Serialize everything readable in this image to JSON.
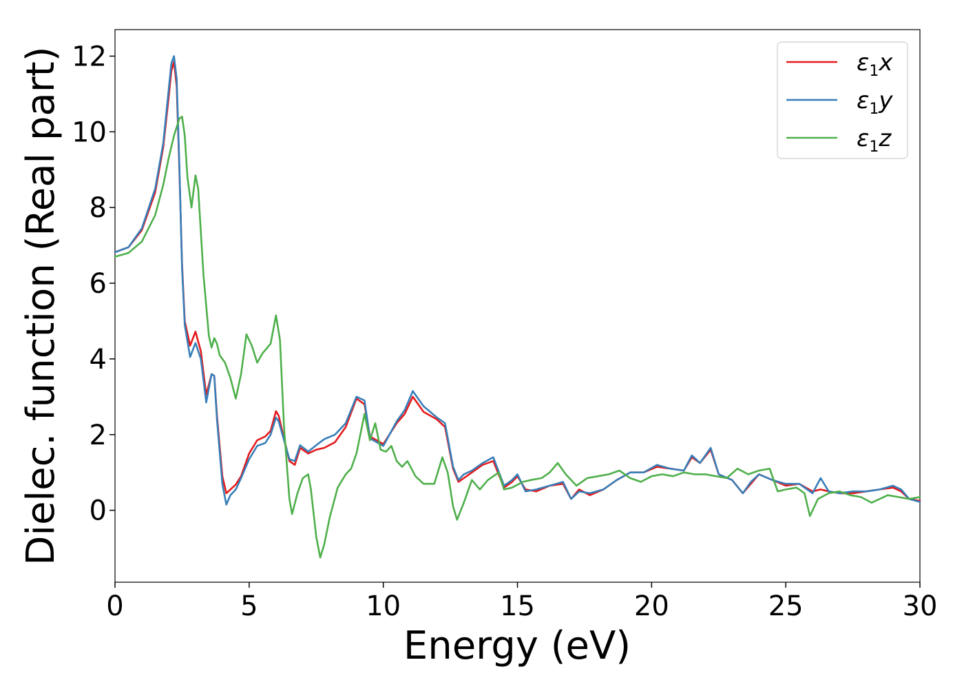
{
  "chart_data": {
    "type": "line",
    "xlabel": "Energy (eV)",
    "ylabel": "Dielec. function (Real part)",
    "xlim": [
      0,
      30
    ],
    "ylim": [
      -1.9,
      12.7
    ],
    "xticks": [
      0,
      5,
      10,
      15,
      20,
      25,
      30
    ],
    "yticks": [
      0,
      2,
      4,
      6,
      8,
      10,
      12
    ],
    "legend_position": "top-right",
    "grid": false,
    "series": [
      {
        "name": "ε1x",
        "legend_base": "ε",
        "legend_sub": "1",
        "legend_var": "x",
        "color": "#e41a1c",
        "points": [
          [
            0,
            6.82
          ],
          [
            0.5,
            6.95
          ],
          [
            1.0,
            7.4
          ],
          [
            1.5,
            8.4
          ],
          [
            1.8,
            9.6
          ],
          [
            2.0,
            10.9
          ],
          [
            2.1,
            11.6
          ],
          [
            2.2,
            11.85
          ],
          [
            2.3,
            11.2
          ],
          [
            2.4,
            9.0
          ],
          [
            2.5,
            6.5
          ],
          [
            2.6,
            5.0
          ],
          [
            2.8,
            4.35
          ],
          [
            3.0,
            4.72
          ],
          [
            3.2,
            4.2
          ],
          [
            3.4,
            3.05
          ],
          [
            3.6,
            3.6
          ],
          [
            3.7,
            3.55
          ],
          [
            3.8,
            2.5
          ],
          [
            4.0,
            0.9
          ],
          [
            4.15,
            0.45
          ],
          [
            4.3,
            0.55
          ],
          [
            4.5,
            0.68
          ],
          [
            4.7,
            0.9
          ],
          [
            5.0,
            1.5
          ],
          [
            5.3,
            1.85
          ],
          [
            5.6,
            1.95
          ],
          [
            5.8,
            2.1
          ],
          [
            6.0,
            2.62
          ],
          [
            6.1,
            2.5
          ],
          [
            6.3,
            1.9
          ],
          [
            6.5,
            1.3
          ],
          [
            6.7,
            1.2
          ],
          [
            6.9,
            1.65
          ],
          [
            7.2,
            1.5
          ],
          [
            7.5,
            1.6
          ],
          [
            7.8,
            1.65
          ],
          [
            8.2,
            1.8
          ],
          [
            8.6,
            2.2
          ],
          [
            9.0,
            2.95
          ],
          [
            9.3,
            2.8
          ],
          [
            9.5,
            1.95
          ],
          [
            10.0,
            1.75
          ],
          [
            10.5,
            2.3
          ],
          [
            10.8,
            2.55
          ],
          [
            11.1,
            3.0
          ],
          [
            11.5,
            2.6
          ],
          [
            12.0,
            2.4
          ],
          [
            12.3,
            2.2
          ],
          [
            12.6,
            1.1
          ],
          [
            12.8,
            0.75
          ],
          [
            13.0,
            0.85
          ],
          [
            13.3,
            1.0
          ],
          [
            13.7,
            1.2
          ],
          [
            14.1,
            1.3
          ],
          [
            14.5,
            0.6
          ],
          [
            14.8,
            0.75
          ],
          [
            15.0,
            0.9
          ],
          [
            15.3,
            0.55
          ],
          [
            15.7,
            0.5
          ],
          [
            16.2,
            0.65
          ],
          [
            16.7,
            0.7
          ],
          [
            17.0,
            0.3
          ],
          [
            17.3,
            0.55
          ],
          [
            17.7,
            0.4
          ],
          [
            18.2,
            0.55
          ],
          [
            18.7,
            0.8
          ],
          [
            19.2,
            1.0
          ],
          [
            19.7,
            1.0
          ],
          [
            20.2,
            1.15
          ],
          [
            20.7,
            1.1
          ],
          [
            21.2,
            1.05
          ],
          [
            21.5,
            1.4
          ],
          [
            21.8,
            1.25
          ],
          [
            22.2,
            1.6
          ],
          [
            22.5,
            0.95
          ],
          [
            23.0,
            0.8
          ],
          [
            23.4,
            0.45
          ],
          [
            23.7,
            0.7
          ],
          [
            24.0,
            0.95
          ],
          [
            24.5,
            0.8
          ],
          [
            25.0,
            0.65
          ],
          [
            25.5,
            0.7
          ],
          [
            26.0,
            0.5
          ],
          [
            26.3,
            0.55
          ],
          [
            26.6,
            0.5
          ],
          [
            27.0,
            0.45
          ],
          [
            27.5,
            0.45
          ],
          [
            28.0,
            0.5
          ],
          [
            28.5,
            0.55
          ],
          [
            29.0,
            0.6
          ],
          [
            29.3,
            0.5
          ],
          [
            29.6,
            0.3
          ],
          [
            30.0,
            0.25
          ]
        ]
      },
      {
        "name": "ε1y",
        "legend_base": "ε",
        "legend_sub": "1",
        "legend_var": "y",
        "color": "#377eb8",
        "points": [
          [
            0,
            6.82
          ],
          [
            0.5,
            6.95
          ],
          [
            1.0,
            7.45
          ],
          [
            1.5,
            8.5
          ],
          [
            1.8,
            9.7
          ],
          [
            2.0,
            11.1
          ],
          [
            2.1,
            11.8
          ],
          [
            2.2,
            12.0
          ],
          [
            2.3,
            11.4
          ],
          [
            2.4,
            9.1
          ],
          [
            2.5,
            6.4
          ],
          [
            2.6,
            4.9
          ],
          [
            2.8,
            4.05
          ],
          [
            3.0,
            4.42
          ],
          [
            3.2,
            4.0
          ],
          [
            3.4,
            2.85
          ],
          [
            3.6,
            3.6
          ],
          [
            3.7,
            3.55
          ],
          [
            3.8,
            2.4
          ],
          [
            4.0,
            0.7
          ],
          [
            4.15,
            0.15
          ],
          [
            4.3,
            0.4
          ],
          [
            4.5,
            0.55
          ],
          [
            4.7,
            0.85
          ],
          [
            5.0,
            1.35
          ],
          [
            5.3,
            1.7
          ],
          [
            5.6,
            1.78
          ],
          [
            5.8,
            2.0
          ],
          [
            6.0,
            2.45
          ],
          [
            6.1,
            2.35
          ],
          [
            6.3,
            1.85
          ],
          [
            6.5,
            1.35
          ],
          [
            6.7,
            1.3
          ],
          [
            6.9,
            1.72
          ],
          [
            7.2,
            1.55
          ],
          [
            7.5,
            1.72
          ],
          [
            7.8,
            1.88
          ],
          [
            8.2,
            2.0
          ],
          [
            8.6,
            2.3
          ],
          [
            9.0,
            3.0
          ],
          [
            9.3,
            2.9
          ],
          [
            9.5,
            1.9
          ],
          [
            10.0,
            1.7
          ],
          [
            10.5,
            2.35
          ],
          [
            10.8,
            2.65
          ],
          [
            11.1,
            3.15
          ],
          [
            11.5,
            2.75
          ],
          [
            12.0,
            2.45
          ],
          [
            12.3,
            2.3
          ],
          [
            12.6,
            1.15
          ],
          [
            12.8,
            0.8
          ],
          [
            13.0,
            0.95
          ],
          [
            13.3,
            1.05
          ],
          [
            13.7,
            1.25
          ],
          [
            14.1,
            1.4
          ],
          [
            14.5,
            0.65
          ],
          [
            14.8,
            0.8
          ],
          [
            15.0,
            0.95
          ],
          [
            15.3,
            0.5
          ],
          [
            15.7,
            0.55
          ],
          [
            16.2,
            0.65
          ],
          [
            16.7,
            0.75
          ],
          [
            17.0,
            0.3
          ],
          [
            17.3,
            0.5
          ],
          [
            17.7,
            0.45
          ],
          [
            18.2,
            0.55
          ],
          [
            18.7,
            0.8
          ],
          [
            19.2,
            1.0
          ],
          [
            19.7,
            1.0
          ],
          [
            20.2,
            1.2
          ],
          [
            20.7,
            1.1
          ],
          [
            21.2,
            1.05
          ],
          [
            21.5,
            1.45
          ],
          [
            21.8,
            1.25
          ],
          [
            22.2,
            1.65
          ],
          [
            22.5,
            0.95
          ],
          [
            23.0,
            0.8
          ],
          [
            23.4,
            0.45
          ],
          [
            23.7,
            0.75
          ],
          [
            24.0,
            0.95
          ],
          [
            24.5,
            0.8
          ],
          [
            25.0,
            0.7
          ],
          [
            25.5,
            0.7
          ],
          [
            26.0,
            0.45
          ],
          [
            26.3,
            0.85
          ],
          [
            26.6,
            0.5
          ],
          [
            27.0,
            0.45
          ],
          [
            27.5,
            0.5
          ],
          [
            28.0,
            0.5
          ],
          [
            28.5,
            0.55
          ],
          [
            29.0,
            0.65
          ],
          [
            29.3,
            0.55
          ],
          [
            29.6,
            0.3
          ],
          [
            30.0,
            0.22
          ]
        ]
      },
      {
        "name": "ε1z",
        "legend_base": "ε",
        "legend_sub": "1",
        "legend_var": "z",
        "color": "#4daf4a",
        "points": [
          [
            0,
            6.7
          ],
          [
            0.5,
            6.8
          ],
          [
            1.0,
            7.1
          ],
          [
            1.5,
            7.8
          ],
          [
            1.8,
            8.6
          ],
          [
            2.0,
            9.3
          ],
          [
            2.2,
            9.9
          ],
          [
            2.4,
            10.35
          ],
          [
            2.5,
            10.4
          ],
          [
            2.6,
            9.9
          ],
          [
            2.7,
            8.8
          ],
          [
            2.85,
            8.0
          ],
          [
            3.0,
            8.85
          ],
          [
            3.1,
            8.5
          ],
          [
            3.3,
            6.2
          ],
          [
            3.5,
            4.6
          ],
          [
            3.6,
            4.3
          ],
          [
            3.7,
            4.55
          ],
          [
            3.8,
            4.4
          ],
          [
            3.9,
            4.1
          ],
          [
            4.1,
            3.9
          ],
          [
            4.3,
            3.5
          ],
          [
            4.5,
            2.95
          ],
          [
            4.7,
            3.6
          ],
          [
            4.9,
            4.65
          ],
          [
            5.1,
            4.35
          ],
          [
            5.3,
            3.9
          ],
          [
            5.5,
            4.15
          ],
          [
            5.8,
            4.4
          ],
          [
            6.0,
            5.15
          ],
          [
            6.15,
            4.5
          ],
          [
            6.3,
            2.2
          ],
          [
            6.5,
            0.3
          ],
          [
            6.6,
            -0.1
          ],
          [
            6.8,
            0.45
          ],
          [
            7.0,
            0.85
          ],
          [
            7.2,
            0.95
          ],
          [
            7.3,
            0.55
          ],
          [
            7.5,
            -0.7
          ],
          [
            7.65,
            -1.25
          ],
          [
            7.8,
            -0.9
          ],
          [
            8.0,
            -0.2
          ],
          [
            8.3,
            0.6
          ],
          [
            8.6,
            0.95
          ],
          [
            8.8,
            1.1
          ],
          [
            9.0,
            1.5
          ],
          [
            9.3,
            2.55
          ],
          [
            9.5,
            1.85
          ],
          [
            9.7,
            2.3
          ],
          [
            9.9,
            1.6
          ],
          [
            10.1,
            1.55
          ],
          [
            10.3,
            1.7
          ],
          [
            10.5,
            1.3
          ],
          [
            10.7,
            1.15
          ],
          [
            10.9,
            1.3
          ],
          [
            11.2,
            0.9
          ],
          [
            11.5,
            0.7
          ],
          [
            11.9,
            0.7
          ],
          [
            12.2,
            1.4
          ],
          [
            12.4,
            1.0
          ],
          [
            12.6,
            0.1
          ],
          [
            12.75,
            -0.25
          ],
          [
            13.0,
            0.2
          ],
          [
            13.3,
            0.8
          ],
          [
            13.6,
            0.55
          ],
          [
            13.9,
            0.8
          ],
          [
            14.3,
            1.0
          ],
          [
            14.5,
            0.55
          ],
          [
            14.8,
            0.6
          ],
          [
            15.2,
            0.75
          ],
          [
            15.5,
            0.8
          ],
          [
            15.9,
            0.85
          ],
          [
            16.2,
            1.0
          ],
          [
            16.5,
            1.25
          ],
          [
            16.8,
            0.95
          ],
          [
            17.2,
            0.65
          ],
          [
            17.6,
            0.85
          ],
          [
            18.0,
            0.9
          ],
          [
            18.4,
            0.95
          ],
          [
            18.8,
            1.05
          ],
          [
            19.2,
            0.85
          ],
          [
            19.6,
            0.75
          ],
          [
            20.0,
            0.9
          ],
          [
            20.4,
            0.95
          ],
          [
            20.8,
            0.9
          ],
          [
            21.2,
            1.0
          ],
          [
            21.6,
            0.95
          ],
          [
            22.0,
            0.95
          ],
          [
            22.4,
            0.9
          ],
          [
            22.8,
            0.85
          ],
          [
            23.2,
            1.1
          ],
          [
            23.6,
            0.95
          ],
          [
            24.0,
            1.05
          ],
          [
            24.4,
            1.1
          ],
          [
            24.7,
            0.5
          ],
          [
            25.0,
            0.55
          ],
          [
            25.4,
            0.6
          ],
          [
            25.7,
            0.45
          ],
          [
            25.9,
            -0.15
          ],
          [
            26.2,
            0.3
          ],
          [
            26.6,
            0.45
          ],
          [
            27.0,
            0.5
          ],
          [
            27.4,
            0.4
          ],
          [
            27.8,
            0.35
          ],
          [
            28.2,
            0.2
          ],
          [
            28.5,
            0.3
          ],
          [
            28.8,
            0.4
          ],
          [
            29.2,
            0.35
          ],
          [
            29.6,
            0.3
          ],
          [
            30.0,
            0.35
          ]
        ]
      }
    ]
  }
}
